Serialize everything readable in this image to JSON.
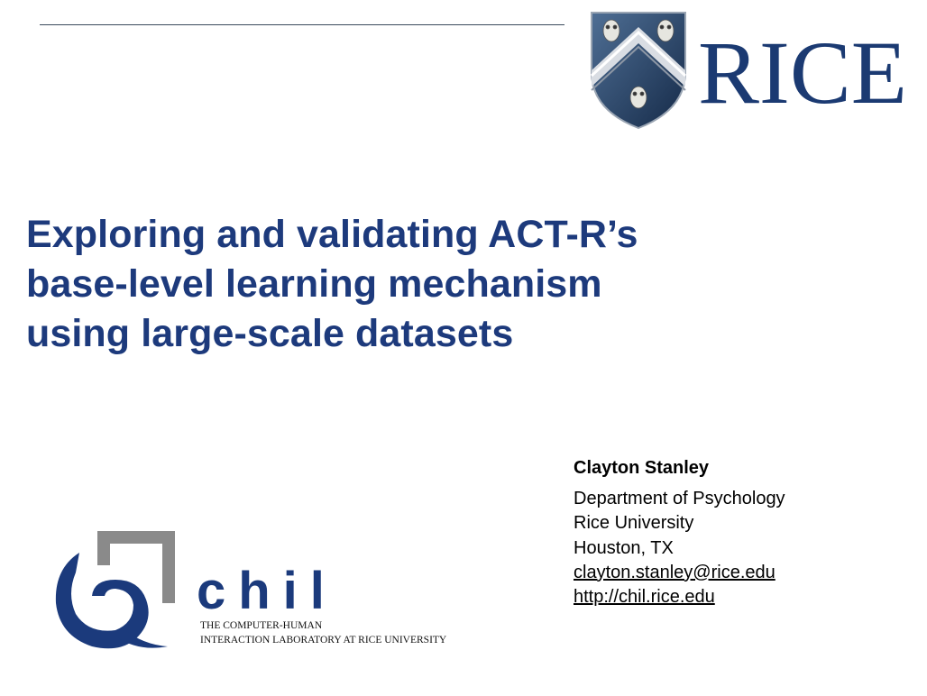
{
  "logo": {
    "rice_wordmark": "RICE",
    "colors": {
      "navy": "#1b3a72",
      "silver": "#c8ccd4",
      "shield_dark": "#1f3552"
    }
  },
  "title": {
    "lines": [
      "Exploring and validating ACT-R’s",
      "base-level learning mechanism",
      "using large-scale datasets"
    ],
    "color": "#1d3a7c"
  },
  "author": {
    "name": "Clayton Stanley",
    "department": "Department of Psychology",
    "university": "Rice University",
    "location": "Houston, TX",
    "email": "clayton.stanley@rice.edu",
    "website": "http://chil.rice.edu"
  },
  "chil_logo": {
    "wordmark": "chil",
    "tagline_1": "THE COMPUTER-HUMAN",
    "tagline_2": "INTERACTION LABORATORY AT RICE UNIVERSITY",
    "colors": {
      "navy": "#1b3a7c",
      "gray": "#8a8a8a"
    }
  }
}
